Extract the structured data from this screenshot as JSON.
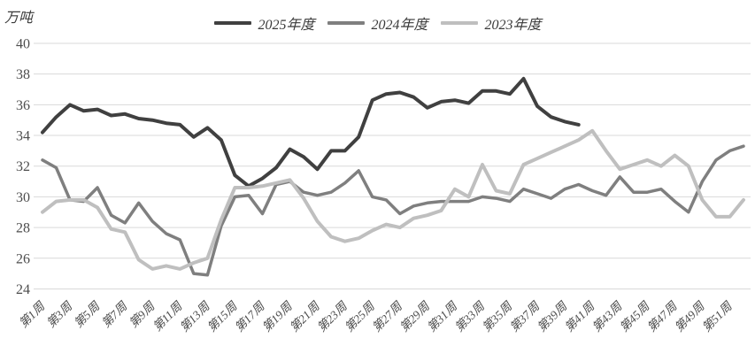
{
  "chart_data": {
    "type": "line",
    "title": "",
    "ylabel": "万吨",
    "xlabel": "",
    "ylim": [
      24,
      40
    ],
    "yticks": [
      40,
      38,
      36,
      34,
      32,
      30,
      28,
      26,
      24
    ],
    "grid": "horizontal",
    "grid_color": "#d9d9d9",
    "legend_position": "top-center",
    "x_tick_labels": [
      "第1周",
      "第3周",
      "第5周",
      "第7周",
      "第9周",
      "第11周",
      "第13周",
      "第15周",
      "第17周",
      "第19周",
      "第21周",
      "第23周",
      "第25周",
      "第27周",
      "第29周",
      "第31周",
      "第33周",
      "第35周",
      "第37周",
      "第39周",
      "第41周",
      "第43周",
      "第45周",
      "第47周",
      "第49周",
      "第51周"
    ],
    "x_weeks_total": 52,
    "series": [
      {
        "name": "2025年度",
        "color": "#404040",
        "line_width": 4,
        "x_start_week": 1,
        "values": [
          34.2,
          35.2,
          36.0,
          35.6,
          35.7,
          35.3,
          35.4,
          35.1,
          35.0,
          34.8,
          34.7,
          33.9,
          34.5,
          33.7,
          31.4,
          30.7,
          31.2,
          31.9,
          33.1,
          32.6,
          31.8,
          33.0,
          33.0,
          33.9,
          36.3,
          36.7,
          36.8,
          36.5,
          35.8,
          36.2,
          36.3,
          36.1,
          36.9,
          36.9,
          36.7,
          37.7,
          35.9,
          35.2,
          34.9,
          34.7
        ]
      },
      {
        "name": "2024年度",
        "color": "#7f7f7f",
        "line_width": 3.5,
        "x_start_week": 1,
        "values": [
          32.4,
          31.9,
          29.8,
          29.7,
          30.6,
          28.8,
          28.3,
          29.6,
          28.4,
          27.6,
          27.2,
          25.0,
          24.9,
          28.1,
          30.0,
          30.1,
          28.9,
          30.8,
          31.0,
          30.3,
          30.1,
          30.3,
          30.9,
          31.7,
          30.0,
          29.8,
          28.9,
          29.4,
          29.6,
          29.7,
          29.7,
          29.7,
          30.0,
          29.9,
          29.7,
          30.5,
          30.2,
          29.9,
          30.5,
          30.8,
          30.4,
          30.1,
          31.3,
          30.3,
          30.3,
          30.5,
          29.7,
          29.0,
          31.0,
          32.4,
          33.0,
          33.3
        ]
      },
      {
        "name": "2023年度",
        "color": "#bfbfbf",
        "line_width": 4,
        "x_start_week": 1,
        "values": [
          29.0,
          29.7,
          29.8,
          29.8,
          29.3,
          27.9,
          27.7,
          25.9,
          25.3,
          25.5,
          25.3,
          25.7,
          26.0,
          28.5,
          30.6,
          30.6,
          30.7,
          30.9,
          31.1,
          29.9,
          28.4,
          27.4,
          27.1,
          27.3,
          27.8,
          28.2,
          28.0,
          28.6,
          28.8,
          29.1,
          30.5,
          30.0,
          32.1,
          30.4,
          30.2,
          32.1,
          32.5,
          32.9,
          33.3,
          33.7,
          34.3,
          33.0,
          31.8,
          32.1,
          32.4,
          32.0,
          32.7,
          32.0,
          29.8,
          28.7,
          28.7,
          29.8
        ]
      }
    ]
  }
}
